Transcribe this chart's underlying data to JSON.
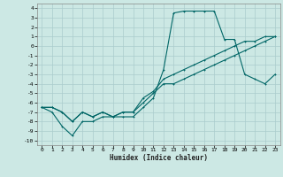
{
  "xlabel": "Humidex (Indice chaleur)",
  "bg_color": "#cce8e4",
  "grid_color": "#aacccc",
  "line_color": "#006666",
  "xlim": [
    -0.5,
    23.5
  ],
  "ylim": [
    -10.5,
    4.5
  ],
  "xticks": [
    0,
    1,
    2,
    3,
    4,
    5,
    6,
    7,
    8,
    9,
    10,
    11,
    12,
    13,
    14,
    15,
    16,
    17,
    18,
    19,
    20,
    21,
    22,
    23
  ],
  "yticks": [
    -10,
    -9,
    -8,
    -7,
    -6,
    -5,
    -4,
    -3,
    -2,
    -1,
    0,
    1,
    2,
    3,
    4
  ],
  "line1_x": [
    0,
    1,
    2,
    3,
    4,
    5,
    6,
    7,
    8,
    9,
    10,
    11,
    12,
    13,
    14,
    15,
    16,
    17,
    18,
    19,
    20,
    21,
    22,
    23
  ],
  "line1_y": [
    -6.5,
    -7.0,
    -8.5,
    -9.5,
    -8.0,
    -8.0,
    -7.5,
    -7.5,
    -7.5,
    -7.5,
    -6.5,
    -5.5,
    -2.5,
    3.5,
    3.7,
    3.7,
    3.7,
    3.7,
    0.7,
    0.7,
    -3.0,
    -3.5,
    -4.0,
    -3.0
  ],
  "line2_x": [
    0,
    1,
    2,
    3,
    4,
    5,
    6,
    7,
    8,
    9,
    10,
    11,
    12,
    13,
    14,
    15,
    16,
    17,
    18,
    19,
    20,
    21,
    22,
    23
  ],
  "line2_y": [
    -6.5,
    -6.5,
    -7.0,
    -8.0,
    -7.0,
    -7.5,
    -7.0,
    -7.5,
    -7.0,
    -7.0,
    -6.0,
    -5.0,
    -4.0,
    -4.0,
    -3.5,
    -3.0,
    -2.5,
    -2.0,
    -1.5,
    -1.0,
    -0.5,
    0.0,
    0.5,
    1.0
  ],
  "line3_x": [
    0,
    1,
    2,
    3,
    4,
    5,
    6,
    7,
    8,
    9,
    10,
    11,
    12,
    13,
    14,
    15,
    16,
    17,
    18,
    19,
    20,
    21,
    22,
    23
  ],
  "line3_y": [
    -6.5,
    -6.5,
    -7.0,
    -8.0,
    -7.0,
    -7.5,
    -7.0,
    -7.5,
    -7.0,
    -7.0,
    -5.5,
    -4.8,
    -3.5,
    -3.0,
    -2.5,
    -2.0,
    -1.5,
    -1.0,
    -0.5,
    0.0,
    0.5,
    0.5,
    1.0,
    1.0
  ]
}
